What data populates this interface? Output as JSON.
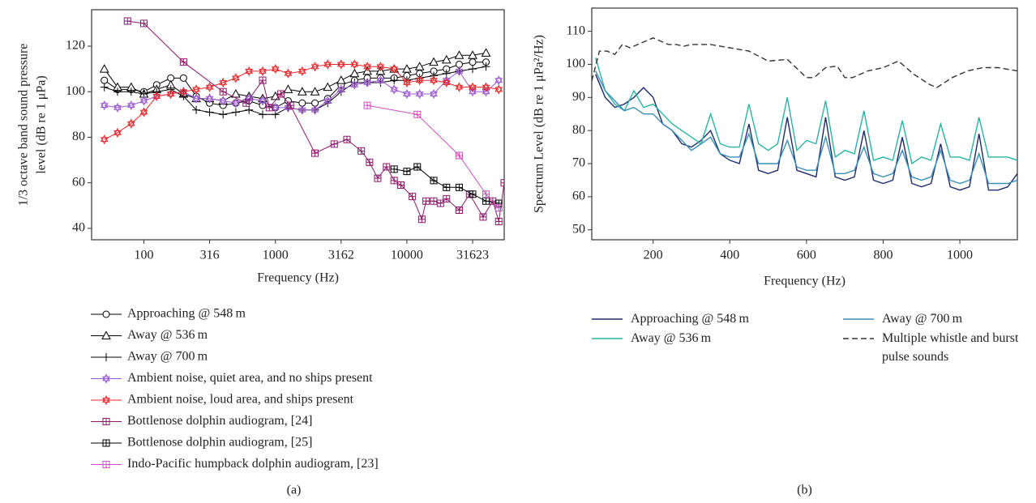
{
  "chart_data": [
    {
      "type": "line",
      "xscale": "log",
      "grid": false,
      "frame": true,
      "ylabel": [
        "1/3 octave band sound pressure",
        "level (dB re 1 μPa)"
      ],
      "xlabel": "Frequency (Hz)",
      "caption": "(a)",
      "xlim": [
        40,
        55000
      ],
      "ylim": [
        35,
        136
      ],
      "xticks": [
        100,
        316,
        1000,
        3162,
        10000,
        31623
      ],
      "yticks": [
        40,
        60,
        80,
        100,
        120
      ],
      "series": [
        {
          "name": "Approaching @ 548 m",
          "color": "#000000",
          "marker": "circle",
          "x": [
            50,
            63,
            80,
            100,
            125,
            160,
            200,
            250,
            316,
            400,
            500,
            630,
            800,
            1000,
            1250,
            1600,
            2000,
            2500,
            3162,
            4000,
            5000,
            6300,
            8000,
            10000,
            12500,
            16000,
            20000,
            25000,
            31623,
            40000
          ],
          "values": [
            105,
            101,
            101,
            100,
            103,
            106,
            106,
            98,
            95,
            94,
            95,
            96,
            94,
            93,
            96,
            95,
            95,
            97,
            103,
            105,
            106,
            106,
            106,
            107,
            108,
            109,
            110,
            112,
            113,
            113
          ]
        },
        {
          "name": "Away @ 536 m",
          "color": "#000000",
          "marker": "triangle",
          "x": [
            50,
            63,
            80,
            100,
            125,
            160,
            200,
            250,
            316,
            400,
            500,
            630,
            800,
            1000,
            1250,
            1600,
            2000,
            2500,
            3162,
            4000,
            5000,
            6300,
            8000,
            10000,
            12500,
            16000,
            20000,
            25000,
            31623,
            40000
          ],
          "values": [
            110,
            102,
            102,
            99,
            101,
            103,
            99,
            97,
            97,
            96,
            99,
            98,
            97,
            98,
            101,
            100,
            100,
            102,
            105,
            108,
            109,
            109,
            110,
            110,
            111,
            113,
            114,
            116,
            116,
            117
          ]
        },
        {
          "name": "Away @ 700 m",
          "color": "#000000",
          "marker": "plus",
          "x": [
            50,
            63,
            80,
            100,
            125,
            160,
            200,
            250,
            316,
            400,
            500,
            630,
            800,
            1000,
            1250,
            1600,
            2000,
            2500,
            3162,
            4000,
            5000,
            6300,
            8000,
            10000,
            12500,
            16000,
            20000,
            25000,
            31623,
            40000
          ],
          "values": [
            102,
            100,
            100,
            99,
            100,
            101,
            98,
            92,
            91,
            90,
            91,
            92,
            90,
            90,
            93,
            92,
            92,
            95,
            100,
            104,
            104,
            104,
            105,
            105,
            106,
            107,
            108,
            109,
            110,
            111
          ]
        },
        {
          "name": "Ambient noise, quiet area, and no ships present",
          "color": "#9b59d0",
          "marker": "hexagram",
          "x": [
            50,
            63,
            80,
            100,
            125,
            160,
            200,
            250,
            316,
            400,
            500,
            630,
            800,
            1000,
            1250,
            1600,
            2000,
            2500,
            3162,
            4000,
            5000,
            6300,
            8000,
            10000,
            12500,
            16000,
            20000,
            25000,
            31623,
            40000,
            50000
          ],
          "values": [
            94,
            93,
            94,
            96,
            98,
            99,
            100,
            97,
            97,
            96,
            95,
            97,
            96,
            93,
            93,
            92,
            92,
            96,
            101,
            103,
            104,
            105,
            101,
            99,
            99,
            99,
            105,
            109,
            100,
            100,
            105
          ]
        },
        {
          "name": "Ambient noise, loud area, and ships present",
          "color": "#e8262a",
          "marker": "hexagram",
          "x": [
            50,
            63,
            80,
            100,
            125,
            160,
            200,
            250,
            316,
            400,
            500,
            630,
            800,
            1000,
            1250,
            1600,
            2000,
            2500,
            3162,
            4000,
            5000,
            6300,
            8000,
            10000,
            12500,
            16000,
            20000,
            25000,
            31623,
            40000,
            50000
          ],
          "values": [
            79,
            82,
            86,
            91,
            98,
            99,
            100,
            101,
            102,
            104,
            106,
            109,
            109,
            110,
            108,
            109,
            111,
            112,
            112,
            112,
            111,
            111,
            110,
            104,
            105,
            105,
            104,
            102,
            102,
            102,
            101
          ]
        },
        {
          "name": "Bottlenose dolphin audiogram, [24]",
          "color": "#8b1a6b",
          "marker": "square-plus",
          "x": [
            75,
            100,
            200,
            400,
            600,
            800,
            900,
            1100,
            1300,
            2000,
            2800,
            3500,
            4500,
            5200,
            6000,
            7000,
            8000,
            9000,
            11000,
            13000,
            14000,
            16000,
            18000,
            20000,
            25000,
            30000,
            38000,
            45000,
            50000,
            55000
          ],
          "values": [
            131,
            130,
            113,
            100,
            95,
            105,
            93,
            99,
            94,
            73,
            77,
            79,
            74,
            69,
            62,
            67,
            61,
            59,
            54,
            44,
            52,
            52,
            51,
            53,
            48,
            55,
            45,
            52,
            43,
            60
          ]
        },
        {
          "name": "Bottlenose dolphin audiogram, [25]",
          "color": "#000000",
          "marker": "square-plus",
          "x": [
            8000,
            10000,
            12000,
            16000,
            20000,
            25000,
            31623,
            40000,
            50000
          ],
          "values": [
            66,
            65,
            67,
            61,
            58,
            58,
            55,
            52,
            51
          ]
        },
        {
          "name": "Indo-Pacific humpback dolphin audiogram, [23]",
          "color": "#d050c0",
          "marker": "square-plus",
          "x": [
            5000,
            12000,
            25000,
            40000,
            50000
          ],
          "values": [
            94,
            90,
            72,
            55,
            49
          ]
        }
      ]
    },
    {
      "type": "line",
      "xscale": "linear",
      "grid": false,
      "frame": true,
      "ylabel": [
        "Spectrum Level (dB re 1 μPa²/Hz)"
      ],
      "xlabel": "Frequency (Hz)",
      "caption": "(b)",
      "xlim": [
        40,
        1150
      ],
      "ylim": [
        47,
        117
      ],
      "xticks": [
        200,
        400,
        600,
        800,
        1000
      ],
      "yticks": [
        50,
        60,
        70,
        80,
        90,
        100,
        110
      ],
      "series": [
        {
          "name": "Approaching @ 548 m",
          "color": "#1c2a6b",
          "dash": false,
          "x": [
            50,
            75,
            100,
            125,
            150,
            175,
            200,
            225,
            250,
            275,
            300,
            325,
            350,
            375,
            400,
            425,
            450,
            475,
            500,
            525,
            550,
            575,
            600,
            625,
            650,
            675,
            700,
            725,
            750,
            775,
            800,
            825,
            850,
            875,
            900,
            925,
            950,
            975,
            1000,
            1025,
            1050,
            1075,
            1100,
            1125,
            1150
          ],
          "values": [
            97,
            90,
            87,
            88,
            90,
            93,
            90,
            82,
            80,
            76,
            75,
            77,
            80,
            73,
            71,
            70,
            82,
            68,
            67,
            68,
            84,
            68,
            67,
            66,
            84,
            66,
            65,
            66,
            80,
            65,
            64,
            65,
            78,
            64,
            63,
            64,
            76,
            63,
            62,
            63,
            79,
            62,
            62,
            63,
            67
          ]
        },
        {
          "name": "Away @ 536 m",
          "color": "#2ab3a3",
          "dash": false,
          "x": [
            50,
            75,
            100,
            125,
            150,
            175,
            200,
            225,
            250,
            275,
            300,
            325,
            350,
            375,
            400,
            425,
            450,
            475,
            500,
            525,
            550,
            575,
            600,
            625,
            650,
            675,
            700,
            725,
            750,
            775,
            800,
            825,
            850,
            875,
            900,
            925,
            950,
            975,
            1000,
            1025,
            1050,
            1075,
            1100,
            1125,
            1150
          ],
          "values": [
            102,
            92,
            88,
            86,
            92,
            87,
            88,
            85,
            82,
            80,
            78,
            76,
            85,
            76,
            75,
            75,
            88,
            76,
            74,
            76,
            90,
            74,
            77,
            76,
            89,
            72,
            74,
            73,
            86,
            71,
            72,
            71,
            83,
            70,
            72,
            71,
            82,
            72,
            72,
            71,
            84,
            72,
            72,
            72,
            71
          ]
        },
        {
          "name": "Away @ 700 m",
          "color": "#3a8fb7",
          "dash": false,
          "x": [
            50,
            75,
            100,
            125,
            150,
            175,
            200,
            225,
            250,
            275,
            300,
            325,
            350,
            375,
            400,
            425,
            450,
            475,
            500,
            525,
            550,
            575,
            600,
            625,
            650,
            675,
            700,
            725,
            750,
            775,
            800,
            825,
            850,
            875,
            900,
            925,
            950,
            975,
            1000,
            1025,
            1050,
            1075,
            1100,
            1125,
            1150
          ],
          "values": [
            98,
            92,
            89,
            86,
            87,
            85,
            85,
            82,
            80,
            77,
            74,
            76,
            78,
            73,
            72,
            72,
            79,
            70,
            70,
            70,
            77,
            69,
            68,
            68,
            78,
            67,
            67,
            68,
            75,
            67,
            66,
            67,
            74,
            66,
            65,
            66,
            74,
            65,
            64,
            65,
            73,
            64,
            64,
            64,
            65
          ]
        },
        {
          "name": "Multiple whistle and burst pulse sounds",
          "color": "#333333",
          "dash": true,
          "x": [
            40,
            60,
            80,
            100,
            120,
            140,
            160,
            180,
            200,
            220,
            240,
            260,
            280,
            300,
            350,
            400,
            450,
            500,
            550,
            600,
            620,
            650,
            680,
            700,
            720,
            760,
            800,
            840,
            880,
            920,
            940,
            980,
            1020,
            1060,
            1100,
            1150
          ],
          "values": [
            95,
            104,
            104,
            103,
            106,
            105,
            106,
            107,
            108,
            107,
            106,
            106,
            105.5,
            106,
            106,
            105,
            104,
            101,
            101.5,
            96,
            96,
            99,
            99.5,
            96,
            96,
            98,
            99,
            101,
            97,
            94,
            93,
            96,
            98,
            99,
            99,
            98
          ]
        }
      ]
    }
  ]
}
